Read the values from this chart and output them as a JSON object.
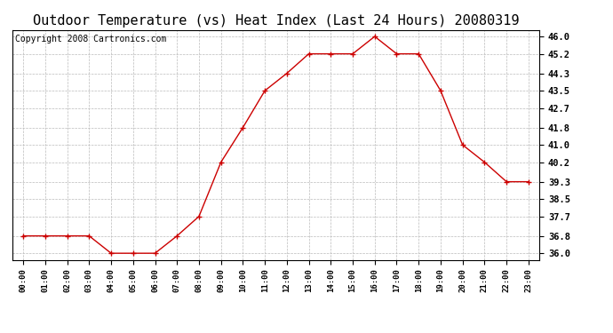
{
  "title": "Outdoor Temperature (vs) Heat Index (Last 24 Hours) 20080319",
  "copyright_text": "Copyright 2008 Cartronics.com",
  "x_labels": [
    "00:00",
    "01:00",
    "02:00",
    "03:00",
    "04:00",
    "05:00",
    "06:00",
    "07:00",
    "08:00",
    "09:00",
    "10:00",
    "11:00",
    "12:00",
    "13:00",
    "14:00",
    "15:00",
    "16:00",
    "17:00",
    "18:00",
    "19:00",
    "20:00",
    "21:00",
    "22:00",
    "23:00"
  ],
  "y_values": [
    36.8,
    36.8,
    36.8,
    36.8,
    36.0,
    36.0,
    36.0,
    36.8,
    37.7,
    40.2,
    41.8,
    43.5,
    44.3,
    45.2,
    45.2,
    45.2,
    46.0,
    45.2,
    45.2,
    43.5,
    41.0,
    40.2,
    39.3,
    39.3
  ],
  "y_ticks": [
    36.0,
    36.8,
    37.7,
    38.5,
    39.3,
    40.2,
    41.0,
    41.8,
    42.7,
    43.5,
    44.3,
    45.2,
    46.0
  ],
  "ylim": [
    35.7,
    46.3
  ],
  "line_color": "#cc0000",
  "marker": "+",
  "marker_size": 4,
  "grid_color": "#bbbbbb",
  "background_color": "#ffffff",
  "title_fontsize": 11,
  "copyright_fontsize": 7
}
